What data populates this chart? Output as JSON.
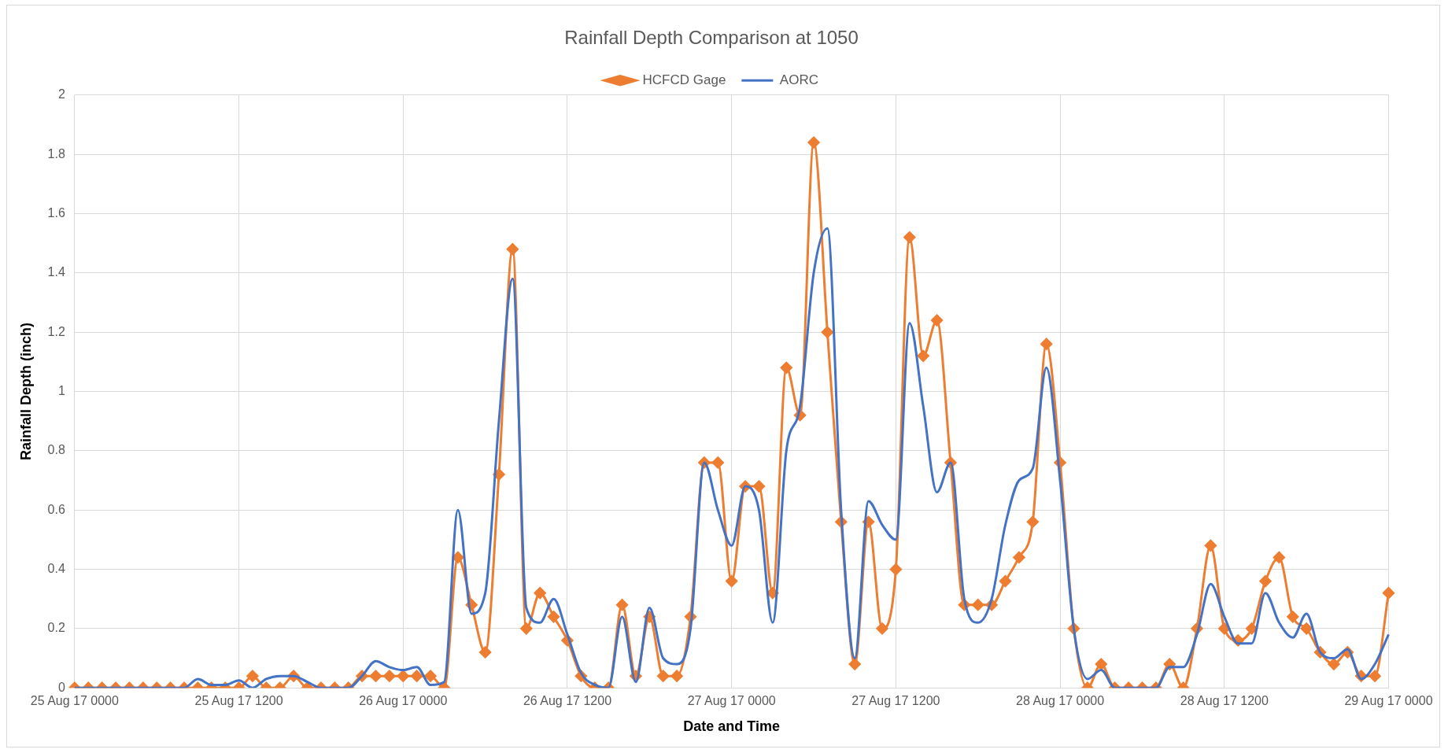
{
  "chart_data": {
    "type": "line",
    "title": "Rainfall Depth Comparison at 1050",
    "xlabel": "Date and Time",
    "ylabel": "Rainfall Depth (inch)",
    "categories": [
      "25 Aug 17 0000",
      null,
      null,
      null,
      null,
      null,
      null,
      null,
      null,
      null,
      null,
      null,
      "25 Aug 17 1200",
      null,
      null,
      null,
      null,
      null,
      null,
      null,
      null,
      null,
      null,
      null,
      "26 Aug 17 0000",
      null,
      null,
      null,
      null,
      null,
      null,
      null,
      null,
      null,
      null,
      null,
      "26 Aug 17 1200",
      null,
      null,
      null,
      null,
      null,
      null,
      null,
      null,
      null,
      null,
      null,
      "27 Aug 17 0000",
      null,
      null,
      null,
      null,
      null,
      null,
      null,
      null,
      null,
      null,
      null,
      "27 Aug 17 1200",
      null,
      null,
      null,
      null,
      null,
      null,
      null,
      null,
      null,
      null,
      null,
      "28 Aug 17 0000",
      null,
      null,
      null,
      null,
      null,
      null,
      null,
      null,
      null,
      null,
      null,
      "28 Aug 17 1200",
      null,
      null,
      null,
      null,
      null,
      null,
      null,
      null,
      null,
      null,
      null,
      "29 Aug 17 0000"
    ],
    "series": [
      {
        "name": "HCFCD Gage",
        "color": "#ed7d31",
        "marker": "diamond",
        "values": [
          0,
          0,
          0,
          0,
          0,
          0,
          0,
          0,
          0,
          0,
          0,
          0,
          0,
          0.04,
          0,
          0,
          0.04,
          0,
          0,
          0,
          0,
          0.04,
          0.04,
          0.04,
          0.04,
          0.04,
          0.04,
          0,
          0.44,
          0.28,
          0.12,
          0.72,
          1.48,
          0.2,
          0.32,
          0.24,
          0.16,
          0.04,
          0,
          0,
          0.28,
          0.04,
          0.24,
          0.04,
          0.04,
          0.24,
          0.76,
          0.76,
          0.36,
          0.68,
          0.68,
          0.32,
          1.08,
          0.92,
          1.84,
          1.2,
          0.56,
          0.08,
          0.56,
          0.2,
          0.4,
          1.52,
          1.12,
          1.24,
          0.76,
          0.28,
          0.28,
          0.28,
          0.36,
          0.44,
          0.56,
          1.16,
          0.76,
          0.2,
          0,
          0.08,
          0,
          0,
          0,
          0,
          0.08,
          0,
          0.2,
          0.48,
          0.2,
          0.16,
          0.2,
          0.36,
          0.44,
          0.24,
          0.2,
          0.12,
          0.08,
          0.12,
          0.04,
          0.04,
          0.32
        ]
      },
      {
        "name": "AORC",
        "color": "#4472c4",
        "marker": "none",
        "values": [
          0,
          0,
          0,
          0,
          0,
          0,
          0,
          0,
          0,
          0.03,
          0.01,
          0.01,
          0.025,
          0,
          0.03,
          0.04,
          0.04,
          0.02,
          0,
          0,
          0,
          0.04,
          0.09,
          0.07,
          0.06,
          0.07,
          0.01,
          0.02,
          0.6,
          0.25,
          0.32,
          0.9,
          1.38,
          0.27,
          0.22,
          0.3,
          0.18,
          0.05,
          0.01,
          0,
          0.24,
          0.02,
          0.27,
          0.1,
          0.08,
          0.2,
          0.76,
          0.6,
          0.48,
          0.68,
          0.6,
          0.22,
          0.8,
          0.95,
          1.4,
          1.55,
          0.6,
          0.1,
          0.63,
          0.55,
          0.5,
          1.23,
          0.95,
          0.66,
          0.76,
          0.3,
          0.22,
          0.3,
          0.55,
          0.7,
          0.74,
          1.08,
          0.7,
          0.2,
          0.03,
          0.06,
          0,
          0,
          0,
          0,
          0.07,
          0.07,
          0.18,
          0.35,
          0.24,
          0.15,
          0.15,
          0.32,
          0.22,
          0.17,
          0.25,
          0.12,
          0.1,
          0.13,
          0.03,
          0.08,
          0.18
        ]
      }
    ],
    "ylim": [
      0,
      2
    ],
    "yticks": [
      0,
      0.2,
      0.4,
      0.6,
      0.8,
      1,
      1.2,
      1.4,
      1.6,
      1.8,
      2
    ],
    "grid": true,
    "legend": "top",
    "line_style": "solid"
  }
}
